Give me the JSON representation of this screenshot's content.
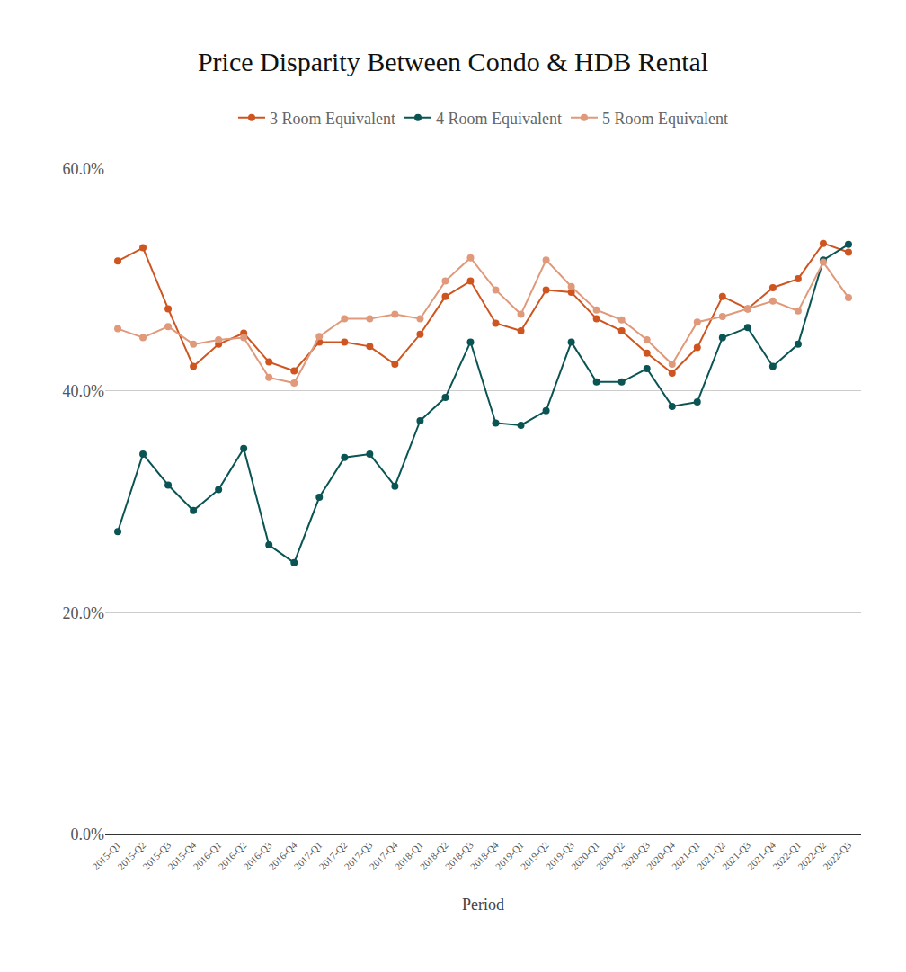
{
  "chart_data": {
    "type": "line",
    "title": "Price Disparity Between Condo & HDB Rental",
    "x_label": "Period",
    "categories": [
      "2015-Q1",
      "2015-Q2",
      "2015-Q3",
      "2015-Q4",
      "2016-Q1",
      "2016-Q2",
      "2016-Q3",
      "2016-Q4",
      "2017-Q1",
      "2017-Q2",
      "2017-Q3",
      "2017-Q4",
      "2018-Q1",
      "2018-Q2",
      "2018-Q3",
      "2018-Q4",
      "2019-Q1",
      "2019-Q2",
      "2019-Q3",
      "2020-Q1",
      "2020-Q2",
      "2020-Q3",
      "2020-Q4",
      "2021-Q1",
      "2021-Q2",
      "2021-Q3",
      "2021-Q4",
      "2022-Q1",
      "2022-Q2",
      "2022-Q3"
    ],
    "series": [
      {
        "name": "3 Room Equivalent",
        "color": "#cf5520",
        "values": [
          51.7,
          52.9,
          47.4,
          42.2,
          44.2,
          45.2,
          42.6,
          41.8,
          44.4,
          44.4,
          44.0,
          42.4,
          45.1,
          48.5,
          49.9,
          46.1,
          45.4,
          49.1,
          48.9,
          46.5,
          45.4,
          43.4,
          41.6,
          43.9,
          48.5,
          47.4,
          49.3,
          50.1,
          53.3,
          52.5
        ]
      },
      {
        "name": "4 Room Equivalent",
        "color": "#0b5454",
        "values": [
          27.3,
          34.3,
          31.5,
          29.2,
          31.1,
          34.8,
          26.1,
          24.5,
          30.4,
          34.0,
          34.3,
          31.4,
          37.3,
          39.4,
          44.4,
          37.1,
          36.9,
          38.2,
          44.4,
          40.8,
          40.8,
          42.0,
          38.6,
          39.0,
          44.8,
          45.7,
          42.2,
          44.2,
          51.8,
          53.2
        ]
      },
      {
        "name": "5 Room Equivalent",
        "color": "#e0997a",
        "values": [
          45.6,
          44.8,
          45.8,
          44.2,
          44.6,
          44.8,
          41.2,
          40.7,
          44.9,
          46.5,
          46.5,
          46.9,
          46.5,
          49.9,
          52.0,
          49.1,
          46.9,
          51.8,
          49.4,
          47.3,
          46.4,
          44.6,
          42.4,
          46.2,
          46.7,
          47.4,
          48.1,
          47.2,
          51.6,
          48.4
        ]
      }
    ],
    "ylim": [
      0,
      60
    ],
    "yticks": [
      {
        "value": 0,
        "label": "0.0%"
      },
      {
        "value": 20,
        "label": "20.0%"
      },
      {
        "value": 40,
        "label": "40.0%"
      },
      {
        "value": 60,
        "label": "60.0%"
      }
    ],
    "grid": true,
    "legend": "top",
    "marker": "circle"
  }
}
